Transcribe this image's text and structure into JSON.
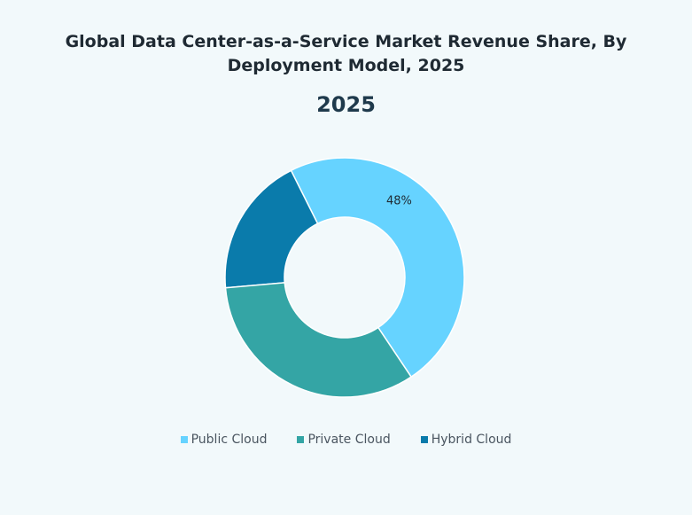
{
  "chart_data": {
    "type": "pie",
    "title": "Global Data Center-as-a-Service Market Revenue Share, By Deployment Model, 2025",
    "subtitle": "2025",
    "categories": [
      "Public Cloud",
      "Private Cloud",
      "Hybrid Cloud"
    ],
    "values": [
      48,
      33,
      19
    ],
    "colors": [
      "#66d3ff",
      "#34a5a5",
      "#0a7bab"
    ],
    "data_labels": [
      "48%",
      "",
      ""
    ],
    "donut": true,
    "legend_position": "bottom"
  }
}
